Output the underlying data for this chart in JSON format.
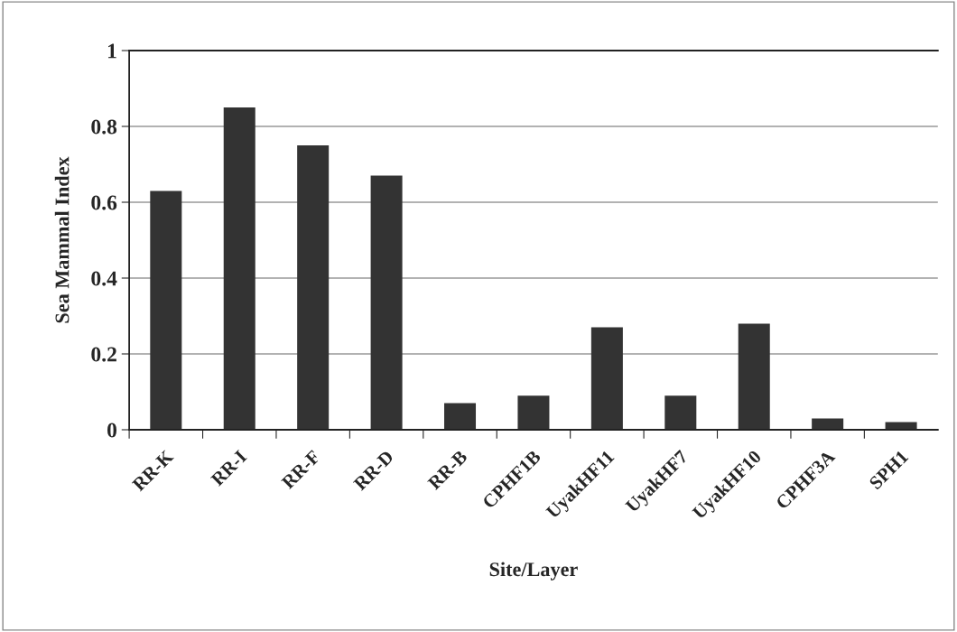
{
  "chart_data": {
    "type": "bar",
    "xlabel": "Site/Layer",
    "ylabel": "Sea Mammal Index",
    "categories": [
      "RR-K",
      "RR-I",
      "RR-F",
      "RR-D",
      "RR-B",
      "CPHF1B",
      "UyakHF11",
      "UyakHF7",
      "UyakHF10",
      "CPHF3A",
      "SPH1"
    ],
    "values": [
      0.63,
      0.85,
      0.75,
      0.67,
      0.07,
      0.09,
      0.27,
      0.09,
      0.28,
      0.03,
      0.02
    ],
    "color": "#333333",
    "ylim": [
      0,
      1
    ],
    "yticks": [
      0,
      0.2,
      0.4,
      0.6,
      0.8,
      1
    ],
    "grid": "y"
  }
}
